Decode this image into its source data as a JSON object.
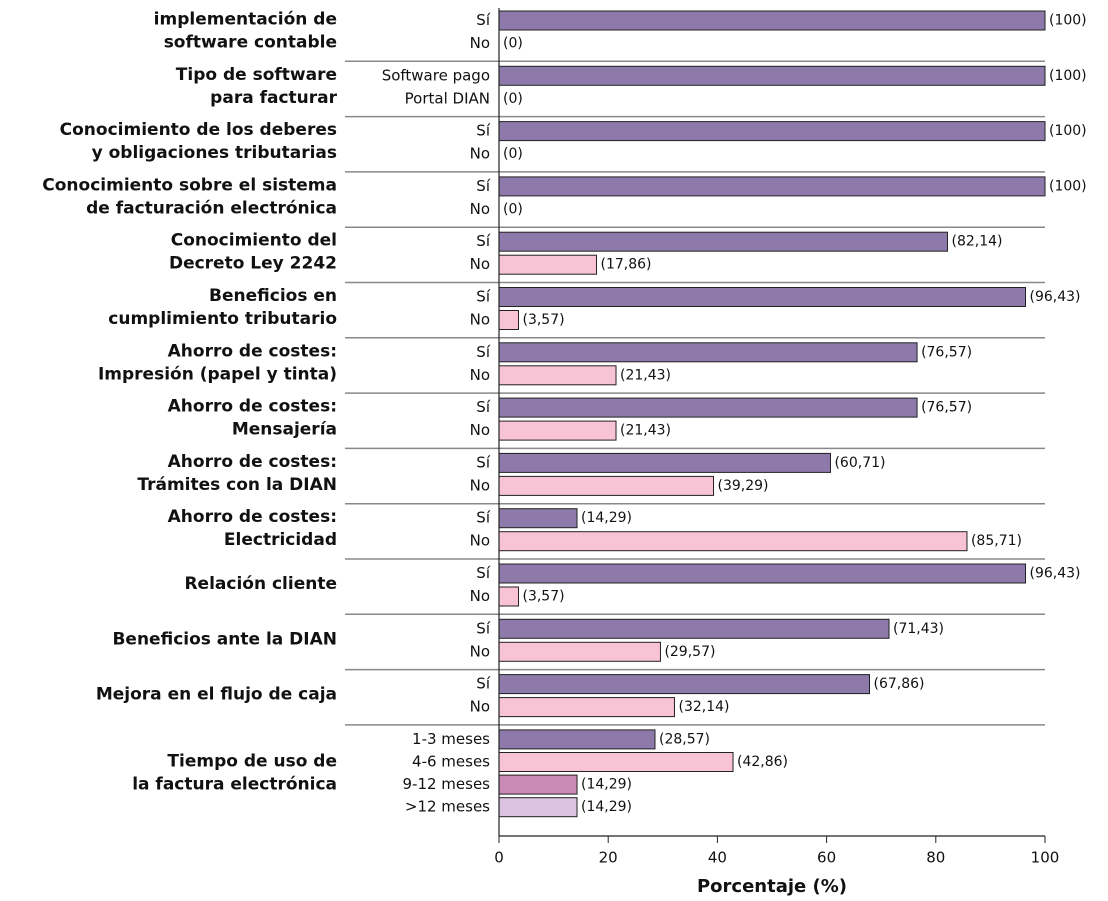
{
  "chart_data": {
    "type": "bar",
    "orientation": "horizontal",
    "xlabel": "Porcentaje (%)",
    "xlim": [
      0,
      100
    ],
    "xticks": [
      0,
      20,
      40,
      60,
      80,
      100
    ],
    "groups": [
      {
        "label": [
          "implementación de",
          "software contable"
        ],
        "categories": [
          "Sí",
          "No"
        ],
        "values": [
          100,
          0
        ],
        "value_labels": [
          "(100)",
          "(0)"
        ],
        "colors": [
          "#8e7aaa",
          "#f8c3d5"
        ]
      },
      {
        "label": [
          "Tipo de software",
          "para facturar"
        ],
        "categories": [
          "Software pago",
          "Portal DIAN"
        ],
        "values": [
          100,
          0
        ],
        "value_labels": [
          "(100)",
          "(0)"
        ],
        "colors": [
          "#8e7aaa",
          "#f8c3d5"
        ]
      },
      {
        "label": [
          "Conocimiento de los deberes",
          "y obligaciones tributarias"
        ],
        "categories": [
          "Sí",
          "No"
        ],
        "values": [
          100,
          0
        ],
        "value_labels": [
          "(100)",
          "(0)"
        ],
        "colors": [
          "#8e7aaa",
          "#f8c3d5"
        ]
      },
      {
        "label": [
          "Conocimiento sobre el sistema",
          "de facturación electrónica"
        ],
        "categories": [
          "Sí",
          "No"
        ],
        "values": [
          100,
          0
        ],
        "value_labels": [
          "(100)",
          "(0)"
        ],
        "colors": [
          "#8e7aaa",
          "#f8c3d5"
        ]
      },
      {
        "label": [
          "Conocimiento del",
          "Decreto Ley 2242"
        ],
        "categories": [
          "Sí",
          "No"
        ],
        "values": [
          82.14,
          17.86
        ],
        "value_labels": [
          "(82,14)",
          "(17,86)"
        ],
        "colors": [
          "#8e7aaa",
          "#f8c3d5"
        ]
      },
      {
        "label": [
          "Beneficios en",
          "cumplimiento tributario"
        ],
        "categories": [
          "Sí",
          "No"
        ],
        "values": [
          96.43,
          3.57
        ],
        "value_labels": [
          "(96,43)",
          "(3,57)"
        ],
        "colors": [
          "#8e7aaa",
          "#f8c3d5"
        ]
      },
      {
        "label": [
          "Ahorro de costes:",
          "Impresión (papel y tinta)"
        ],
        "categories": [
          "Sí",
          "No"
        ],
        "values": [
          76.57,
          21.43
        ],
        "value_labels": [
          "(76,57)",
          "(21,43)"
        ],
        "colors": [
          "#8e7aaa",
          "#f8c3d5"
        ]
      },
      {
        "label": [
          "Ahorro de costes:",
          "Mensajería"
        ],
        "categories": [
          "Sí",
          "No"
        ],
        "values": [
          76.57,
          21.43
        ],
        "value_labels": [
          "(76,57)",
          "(21,43)"
        ],
        "colors": [
          "#8e7aaa",
          "#f8c3d5"
        ]
      },
      {
        "label": [
          "Ahorro de costes:",
          "Trámites con la DIAN"
        ],
        "categories": [
          "Sí",
          "No"
        ],
        "values": [
          60.71,
          39.29
        ],
        "value_labels": [
          "(60,71)",
          "(39,29)"
        ],
        "colors": [
          "#8e7aaa",
          "#f8c3d5"
        ]
      },
      {
        "label": [
          "Ahorro de costes:",
          "Electricidad"
        ],
        "categories": [
          "Sí",
          "No"
        ],
        "values": [
          14.29,
          85.71
        ],
        "value_labels": [
          "(14,29)",
          "(85,71)"
        ],
        "colors": [
          "#8e7aaa",
          "#f8c3d5"
        ]
      },
      {
        "label": [
          "Relación cliente"
        ],
        "categories": [
          "Sí",
          "No"
        ],
        "values": [
          96.43,
          3.57
        ],
        "value_labels": [
          "(96,43)",
          "(3,57)"
        ],
        "colors": [
          "#8e7aaa",
          "#f8c3d5"
        ]
      },
      {
        "label": [
          "Beneficios ante la DIAN"
        ],
        "categories": [
          "Sí",
          "No"
        ],
        "values": [
          71.43,
          29.57
        ],
        "value_labels": [
          "(71,43)",
          "(29,57)"
        ],
        "colors": [
          "#8e7aaa",
          "#f8c3d5"
        ]
      },
      {
        "label": [
          "Mejora en el flujo de caja"
        ],
        "categories": [
          "Sí",
          "No"
        ],
        "values": [
          67.86,
          32.14
        ],
        "value_labels": [
          "(67,86)",
          "(32,14)"
        ],
        "colors": [
          "#8e7aaa",
          "#f8c3d5"
        ]
      },
      {
        "label": [
          "Tiempo de uso de",
          "la factura electrónica"
        ],
        "categories": [
          "1-3 meses",
          "4-6 meses",
          "9-12 meses",
          ">12 meses"
        ],
        "values": [
          28.57,
          42.86,
          14.29,
          14.29
        ],
        "value_labels": [
          "(28,57)",
          "(42,86)",
          "(14,29)",
          "(14,29)"
        ],
        "colors": [
          "#8e7aaa",
          "#f8c3d5",
          "#c98ab5",
          "#dcc2e3"
        ]
      }
    ]
  }
}
